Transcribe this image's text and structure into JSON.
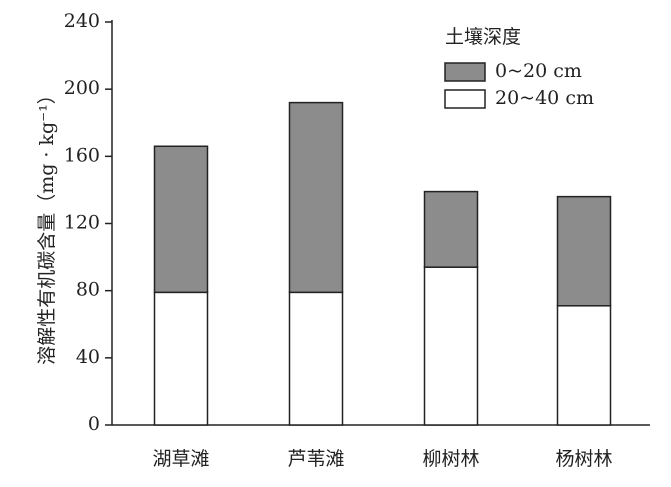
{
  "chart_data": {
    "type": "stacked_bar",
    "y_label": "溶解性有机碳含量（mg · kg⁻¹）",
    "legend_title": "土壤深度",
    "categories": [
      "湖草滩",
      "芦苇滩",
      "柳树林",
      "杨树林"
    ],
    "series": [
      {
        "name": "0~20 cm",
        "color": "#8c8c8c",
        "values": [
          87,
          113,
          45,
          65
        ]
      },
      {
        "name": "20~40 cm",
        "color": "#ffffff",
        "values": [
          79,
          79,
          94,
          71
        ]
      }
    ],
    "ylim": [
      0,
      240
    ],
    "yticks": [
      0,
      40,
      80,
      120,
      160,
      200,
      240
    ]
  }
}
